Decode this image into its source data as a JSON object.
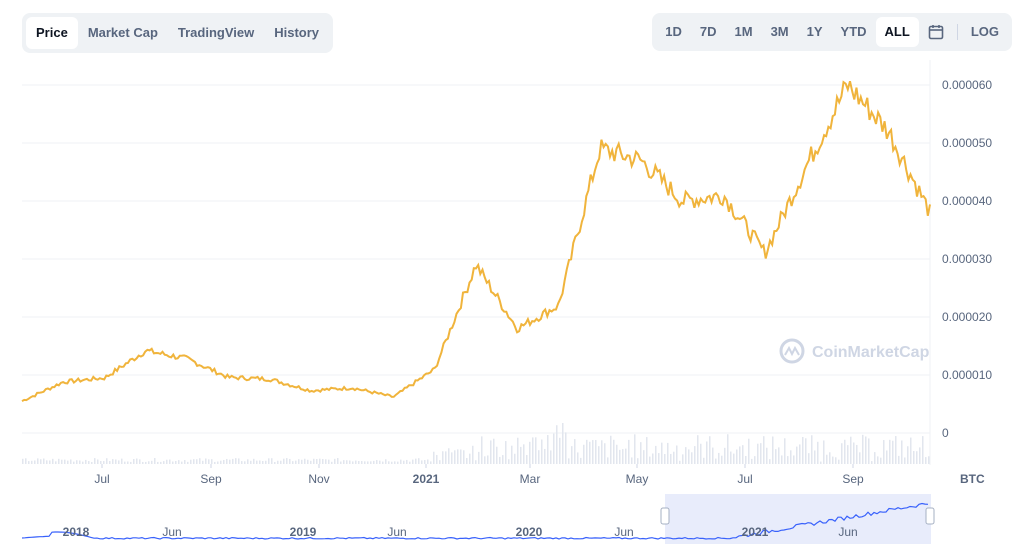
{
  "tabs": [
    {
      "label": "Price",
      "active": true
    },
    {
      "label": "Market Cap",
      "active": false
    },
    {
      "label": "TradingView",
      "active": false
    },
    {
      "label": "History",
      "active": false
    }
  ],
  "ranges": [
    {
      "label": "1D",
      "active": false
    },
    {
      "label": "7D",
      "active": false
    },
    {
      "label": "1M",
      "active": false
    },
    {
      "label": "3M",
      "active": false
    },
    {
      "label": "1Y",
      "active": false
    },
    {
      "label": "YTD",
      "active": false
    },
    {
      "label": "ALL",
      "active": true
    }
  ],
  "log_label": "LOG",
  "calendar_icon": "calendar-icon",
  "watermark": "CoinMarketCap",
  "colors": {
    "line": "#f0b43c",
    "accent": "#3861fb",
    "grid": "#eff2f5",
    "text": "#58667e"
  },
  "chart_data": {
    "type": "line",
    "unit_label": "BTC",
    "y_ticks": [
      "0.000060",
      "0.000050",
      "0.000040",
      "0.000030",
      "0.000020",
      "0.000010",
      "0"
    ],
    "ylim": [
      0,
      6e-05
    ],
    "x_ticks": [
      "Jul",
      "Sep",
      "Nov",
      "2021",
      "Mar",
      "May",
      "Jul",
      "Sep"
    ],
    "navigator_ticks": [
      "2018",
      "Jun",
      "2019",
      "Jun",
      "2020",
      "Jun",
      "2021",
      "Jun"
    ],
    "series": [
      {
        "x": [
          "2020-05",
          "2020-06",
          "2020-07",
          "2020-07-20",
          "2020-08",
          "2020-09",
          "2020-10",
          "2020-11",
          "2020-12",
          "2021-01",
          "2021-02",
          "2021-02-20",
          "2021-03",
          "2021-04",
          "2021-05",
          "2021-05-20",
          "2021-06",
          "2021-07",
          "2021-08",
          "2021-08-20",
          "2021-09",
          "2021-09-10",
          "2021-10"
        ],
        "values": [
          5.5e-06,
          8.8e-06,
          9.5e-06,
          1.42e-05,
          1.28e-05,
          9.6e-06,
          9.3e-06,
          7.3e-06,
          7.8e-06,
          6.2e-06,
          1.1e-05,
          2.9e-05,
          1.8e-05,
          2.2e-05,
          4.9e-05,
          4.7e-05,
          4e-05,
          4.1e-05,
          3.1e-05,
          4.6e-05,
          6e-05,
          5.2e-05,
          3.8e-05
        ]
      }
    ],
    "grid": true
  }
}
